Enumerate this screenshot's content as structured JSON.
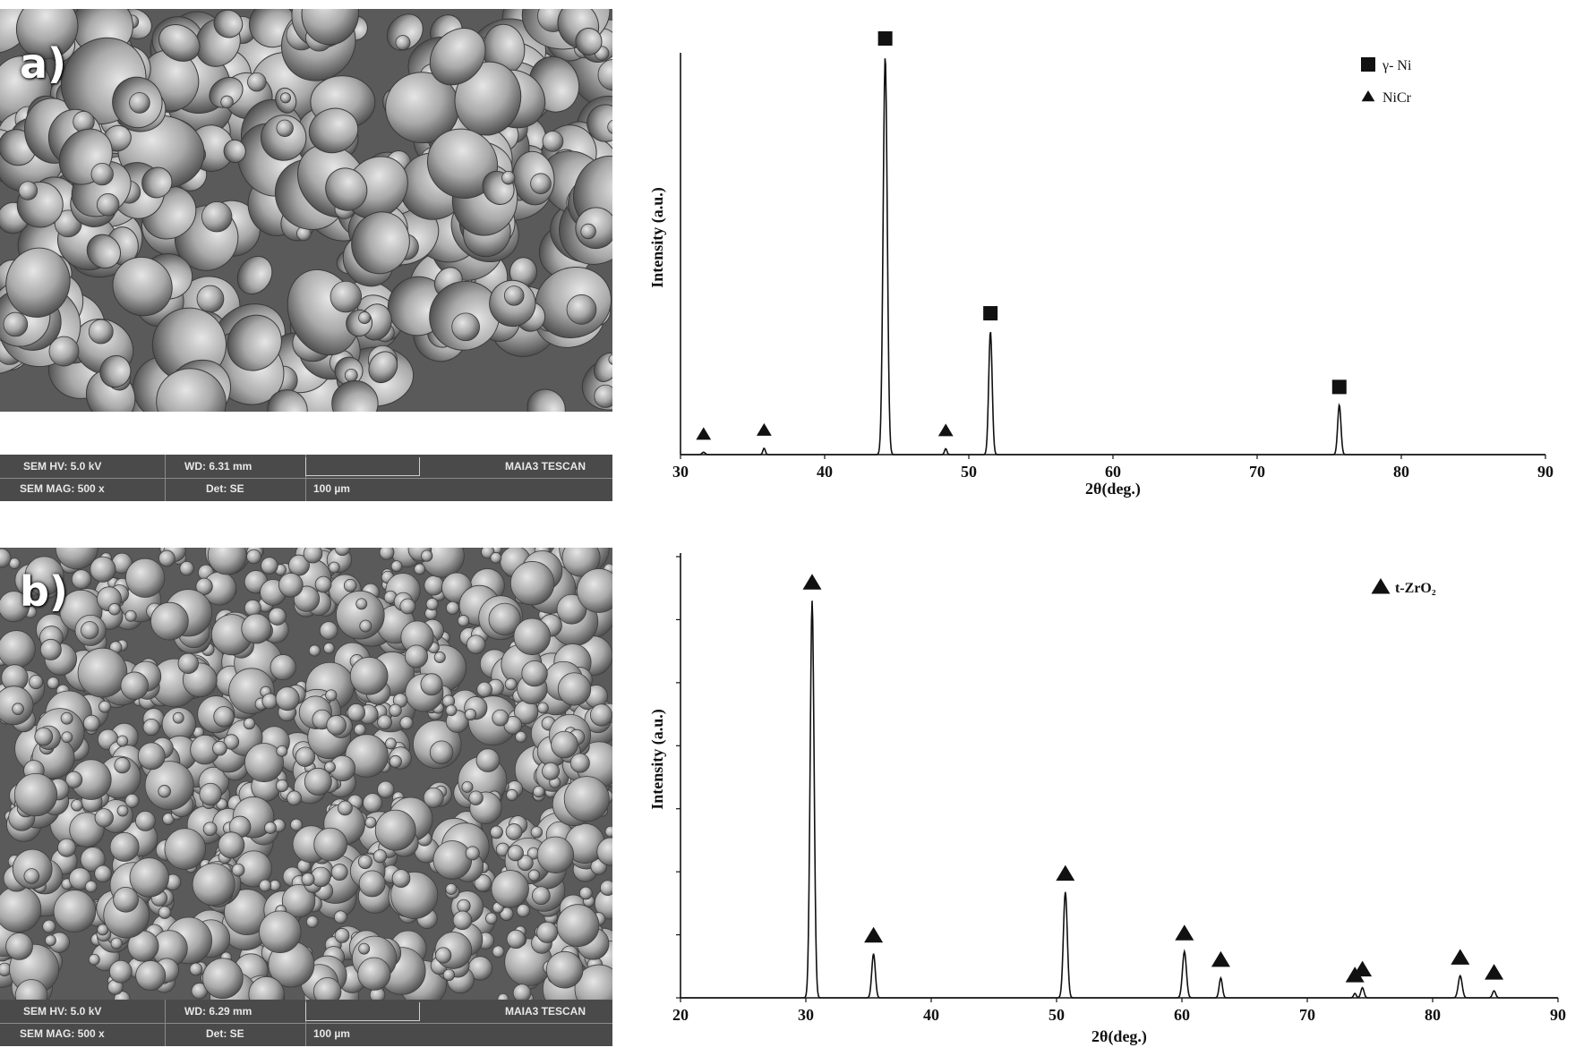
{
  "panels": [
    {
      "label": "a)",
      "sem": {
        "hv": "SEM HV: 5.0 kV",
        "wd": "WD: 6.31 mm",
        "brand": "MAIA3 TESCAN",
        "mag": "SEM MAG: 500 x",
        "det": "Det: SE",
        "scale": "100 µm",
        "particle_style": "irregular"
      }
    },
    {
      "label": "b)",
      "sem": {
        "hv": "SEM HV: 5.0 kV",
        "wd": "WD: 6.29 mm",
        "brand": "MAIA3 TESCAN",
        "mag": "SEM MAG: 500 x",
        "det": "Det: SE",
        "scale": "100 µm",
        "particle_style": "spherical"
      }
    }
  ],
  "chart_data": [
    {
      "type": "line",
      "xlabel": "2θ(deg.)",
      "ylabel": "Intensity  (a.u.)",
      "xlim": [
        30,
        90
      ],
      "ylim": [
        0,
        100
      ],
      "xticks": [
        30,
        40,
        50,
        60,
        70,
        80,
        90
      ],
      "yticks_shown": false,
      "peaks": [
        {
          "x": 31.6,
          "y": 0.6,
          "w": 0.15,
          "marker": "triangle"
        },
        {
          "x": 35.8,
          "y": 1.6,
          "w": 0.12,
          "marker": "triangle"
        },
        {
          "x": 44.2,
          "y": 100,
          "w": 0.2,
          "marker": "square"
        },
        {
          "x": 48.4,
          "y": 1.5,
          "w": 0.12,
          "marker": "triangle"
        },
        {
          "x": 51.5,
          "y": 31,
          "w": 0.17,
          "marker": "square"
        },
        {
          "x": 75.7,
          "y": 12.5,
          "w": 0.16,
          "marker": "square"
        }
      ],
      "legend": [
        {
          "symbol": "square",
          "label": "γ- Ni"
        },
        {
          "symbol": "triangle",
          "label": "NiCr"
        }
      ],
      "legend_position": "top-right",
      "grid": false
    },
    {
      "type": "line",
      "xlabel": "2θ(deg.)",
      "ylabel": "Intensity  (a.u.)",
      "xlim": [
        20,
        90
      ],
      "ylim": [
        0,
        100
      ],
      "xticks": [
        20,
        30,
        40,
        50,
        60,
        70,
        80,
        90
      ],
      "yticks_shown": true,
      "peaks": [
        {
          "x": 30.5,
          "y": 90,
          "w": 0.22,
          "marker": "triangle"
        },
        {
          "x": 35.4,
          "y": 10,
          "w": 0.2,
          "marker": "triangle"
        },
        {
          "x": 50.7,
          "y": 24,
          "w": 0.22,
          "marker": "triangle"
        },
        {
          "x": 60.2,
          "y": 10.5,
          "w": 0.22,
          "marker": "triangle"
        },
        {
          "x": 63.1,
          "y": 4.5,
          "w": 0.18,
          "marker": "triangle"
        },
        {
          "x": 73.8,
          "y": 1.0,
          "w": 0.15,
          "marker": "triangle"
        },
        {
          "x": 74.4,
          "y": 2.3,
          "w": 0.18,
          "marker": "triangle"
        },
        {
          "x": 82.2,
          "y": 5.0,
          "w": 0.22,
          "marker": "triangle"
        },
        {
          "x": 84.9,
          "y": 1.6,
          "w": 0.18,
          "marker": "triangle"
        }
      ],
      "legend": [
        {
          "symbol": "triangle",
          "label": "t-ZrO₂"
        }
      ],
      "legend_position": "top-right",
      "grid": false
    }
  ]
}
